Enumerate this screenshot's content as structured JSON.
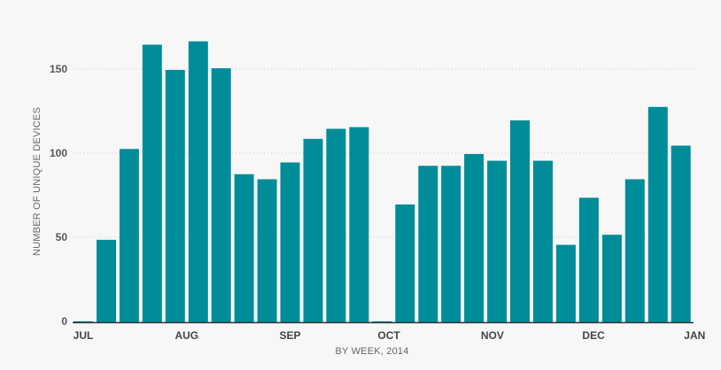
{
  "chart_data": {
    "type": "bar",
    "xlabel": "BY WEEK, 2014",
    "ylabel": "NUMBER OF UNIQUE DEVICES",
    "ylim": [
      0,
      170
    ],
    "yticks": [
      0,
      50,
      100,
      150
    ],
    "grid": true,
    "bar_color": "#008c99",
    "month_ticks": [
      {
        "label": "JUL",
        "week": 0
      },
      {
        "label": "AUG",
        "week": 4.5
      },
      {
        "label": "SEP",
        "week": 9
      },
      {
        "label": "OCT",
        "week": 13.3
      },
      {
        "label": "NOV",
        "week": 17.8
      },
      {
        "label": "DEC",
        "week": 22.2
      },
      {
        "label": "JAN",
        "week": 26.6
      }
    ],
    "values": [
      0,
      49,
      103,
      165,
      150,
      167,
      151,
      88,
      85,
      95,
      109,
      115,
      116,
      0,
      70,
      93,
      93,
      100,
      96,
      120,
      96,
      46,
      74,
      52,
      85,
      128,
      105
    ]
  }
}
